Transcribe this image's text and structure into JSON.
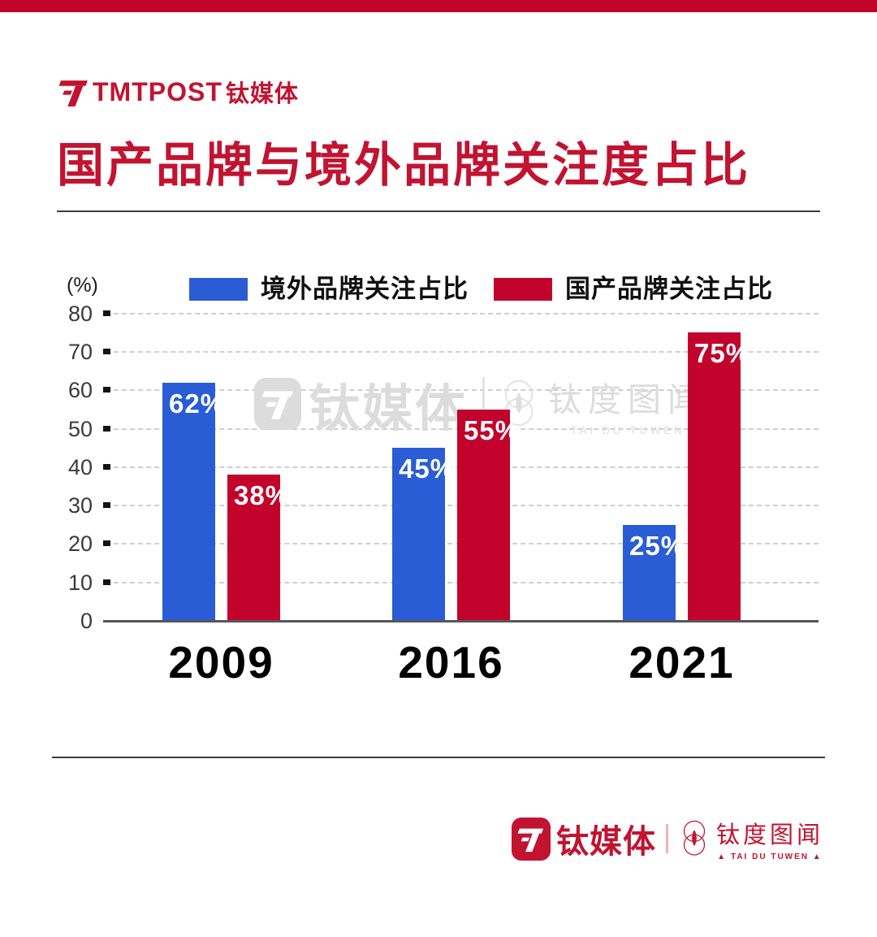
{
  "topbar": {
    "color": "#C2032B"
  },
  "header": {
    "brand_en": "TMTPOST",
    "brand_cn": "钛媒体"
  },
  "title": "国产品牌与境外品牌关注度占比",
  "legend": {
    "unit_label": "(%)",
    "items": [
      {
        "label": "境外品牌关注占比",
        "color": "#2A5CD5"
      },
      {
        "label": "国产品牌关注占比",
        "color": "#C2032B"
      }
    ]
  },
  "chart_data": {
    "type": "bar",
    "title": "国产品牌与境外品牌关注度占比",
    "categories": [
      "2009",
      "2016",
      "2021"
    ],
    "series": [
      {
        "name": "境外品牌关注占比",
        "color": "#2A5CD5",
        "values": [
          62,
          45,
          25
        ],
        "data_labels": [
          "62%",
          "45%",
          "25%"
        ]
      },
      {
        "name": "国产品牌关注占比",
        "color": "#C2032B",
        "values": [
          38,
          55,
          75
        ],
        "data_labels": [
          "38%",
          "55%",
          "75%"
        ]
      }
    ],
    "ylabel": "(%)",
    "ylim": [
      0,
      80
    ],
    "yticks": [
      0,
      10,
      20,
      30,
      40,
      50,
      60,
      70,
      80
    ],
    "grid": "horizontal-dashed",
    "legend_position": "top"
  },
  "watermark": {
    "brand_cn": "钛媒体",
    "tuwen_cn": "钛度图闻",
    "tuwen_en": "TAI DU TUWEN"
  },
  "footer": {
    "brand_cn": "钛媒体",
    "tuwen_cn": "钛度图闻",
    "tuwen_en": "▲ TAI DU TUWEN ▲"
  }
}
